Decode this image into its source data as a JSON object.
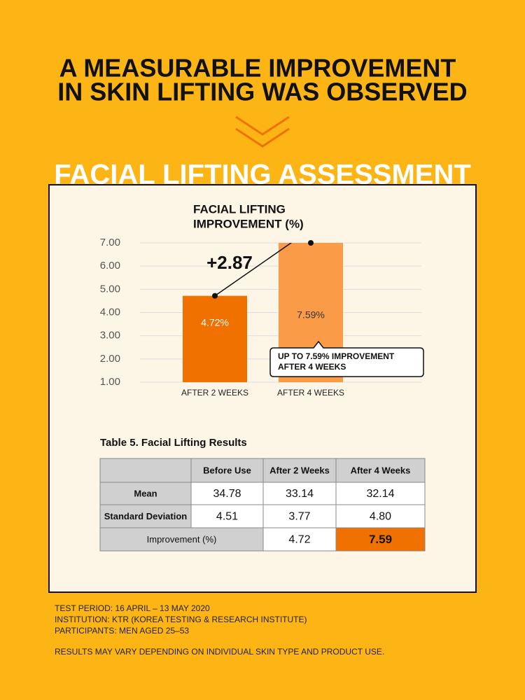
{
  "header": {
    "title_lines": [
      "A MEASURABLE IMPROVEMENT",
      "IN SKIN LIFTING WAS OBSERVED"
    ],
    "section_title": "FACIAL LIFTING ASSESSMENT"
  },
  "chart_data": {
    "type": "bar",
    "title_lines": [
      "FACIAL LIFTING",
      "IMPROVEMENT (%)"
    ],
    "categories": [
      "AFTER 2 WEEKS",
      "AFTER 4 WEEKS"
    ],
    "values": [
      4.72,
      7.59
    ],
    "value_labels": [
      "4.72%",
      "7.59%"
    ],
    "colors": [
      "#f07100",
      "#fa9b48"
    ],
    "ylim": [
      1,
      7
    ],
    "yticks": [
      {
        "value": 1,
        "label": "1.00"
      },
      {
        "value": 2,
        "label": "2.00"
      },
      {
        "value": 3,
        "label": "3.00"
      },
      {
        "value": 4,
        "label": "4.00"
      },
      {
        "value": 5,
        "label": "5.00"
      },
      {
        "value": 6,
        "label": "6.00"
      },
      {
        "value": 7,
        "label": "7.00"
      }
    ],
    "grid": true,
    "annotation": "+2.87",
    "callout_lines": [
      "UP TO 7.59% IMPROVEMENT",
      "AFTER 4 WEEKS"
    ]
  },
  "table": {
    "caption": "Table 5. Facial Lifting Results",
    "columns": [
      "Before Use",
      "After 2 Weeks",
      "After 4 Weeks"
    ],
    "rows": [
      {
        "label": "Mean",
        "cells": [
          "34.78",
          "33.14",
          "32.14"
        ]
      },
      {
        "label": "Standard Deviation",
        "cells": [
          "4.51",
          "3.77",
          "4.80"
        ]
      }
    ],
    "improvement": {
      "label": "Improvement (%)",
      "cells": [
        "4.72",
        "7.59"
      ]
    }
  },
  "footer": {
    "lines": [
      "TEST PERIOD: 16 APRIL – 13 MAY 2020",
      "INSTITUTION: KTR (KOREA TESTING & RESEARCH INSTITUTE)",
      "PARTICIPANTS: MEN AGED 25–53"
    ],
    "disclaimer": "RESULTS MAY VARY DEPENDING ON INDIVIDUAL SKIN TYPE AND PRODUCT USE."
  }
}
